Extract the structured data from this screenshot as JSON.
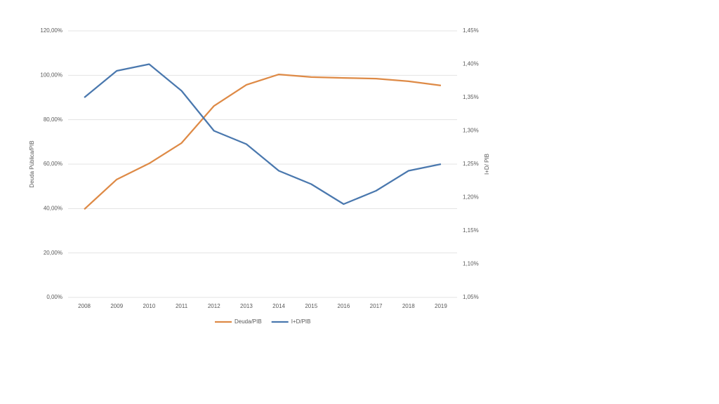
{
  "chart_data": {
    "type": "line",
    "y_label": "Deuda Pública/PIB",
    "y2_label": "I+D/ PIB",
    "categories": [
      "2008",
      "2009",
      "2010",
      "2011",
      "2012",
      "2013",
      "2014",
      "2015",
      "2016",
      "2017",
      "2018",
      "2019"
    ],
    "series": [
      {
        "name": "Deuda/PIB",
        "color": "#de8a46",
        "values": [
          39.7,
          53.1,
          60.3,
          69.5,
          86.2,
          95.7,
          100.4,
          99.2,
          98.8,
          98.5,
          97.3,
          95.4
        ]
      },
      {
        "name": "I+D/PIB",
        "color": "#4a78ae",
        "axis": "y2",
        "values": [
          1.35,
          1.39,
          1.4,
          1.36,
          1.3,
          1.28,
          1.24,
          1.22,
          1.19,
          1.21,
          1.24,
          1.25
        ]
      }
    ],
    "ylim": [
      0,
      120
    ],
    "yticks": [
      {
        "value": 0,
        "label": "0,00%"
      },
      {
        "value": 20,
        "label": "20,00%"
      },
      {
        "value": 40,
        "label": "40,00%"
      },
      {
        "value": 60,
        "label": "60,00%"
      },
      {
        "value": 80,
        "label": "80,00%"
      },
      {
        "value": 100,
        "label": "100,00%"
      },
      {
        "value": 120,
        "label": "120,00%"
      }
    ],
    "y2lim": [
      1.05,
      1.45
    ],
    "y2ticks": [
      {
        "value": 1.05,
        "label": "1,05%"
      },
      {
        "value": 1.1,
        "label": "1,10%"
      },
      {
        "value": 1.15,
        "label": "1,15%"
      },
      {
        "value": 1.2,
        "label": "1,20%"
      },
      {
        "value": 1.25,
        "label": "1,25%"
      },
      {
        "value": 1.3,
        "label": "1,30%"
      },
      {
        "value": 1.35,
        "label": "1,35%"
      },
      {
        "value": 1.4,
        "label": "1,40%"
      },
      {
        "value": 1.45,
        "label": "1,45%"
      }
    ],
    "grid": true,
    "legend": "bottom"
  }
}
